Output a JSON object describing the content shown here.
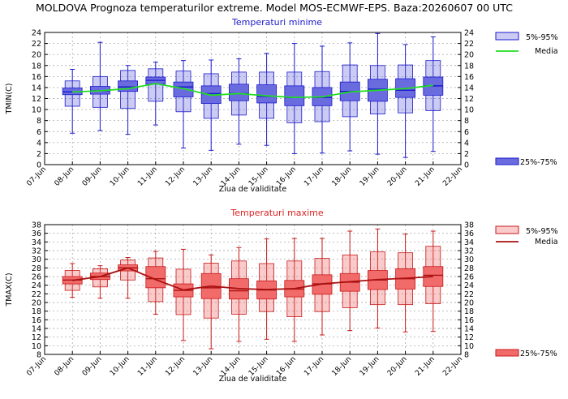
{
  "header": {
    "title": "MOLDOVA  Prognoza temperaturilor extreme.  Model MOS-ECMWF-EPS. Baza:20260607 00 UTC"
  },
  "chart_data": [
    {
      "type": "boxplot",
      "title": "Temperaturi minime",
      "title_color": "#1a1acc",
      "xlabel": "Ziua de validitate",
      "ylabel": "TMIN(C)",
      "ylim": [
        0,
        24
      ],
      "yticks": [
        0,
        2,
        4,
        6,
        8,
        10,
        12,
        14,
        16,
        18,
        20,
        22,
        24
      ],
      "grid": true,
      "categories": [
        "07-Jun",
        "08-Jun",
        "09-Jun",
        "10-Jun",
        "11-Jun",
        "12-Jun",
        "13-Jun",
        "14-Jun",
        "15-Jun",
        "16-Jun",
        "17-Jun",
        "18-Jun",
        "19-Jun",
        "20-Jun",
        "21-Jun",
        "22-Jun"
      ],
      "box_color": "#6b6be0",
      "box_stroke": "#1a1acc",
      "median_color": "#1a1acc",
      "mean_color": "#22dd22",
      "legend": {
        "placement": "right",
        "outer_label": "5%-95%",
        "mean_label": "Media",
        "box_label": "25%-75%"
      },
      "boxes": [
        {
          "x": "08-Jun",
          "p5": 5.7,
          "p25": 12.7,
          "median": 13.2,
          "p75": 13.9,
          "p95": 17.3,
          "p5_box": 10.6,
          "p95_box": 15.2
        },
        {
          "x": "09-Jun",
          "p5": 6.2,
          "p25": 12.8,
          "median": 13.4,
          "p75": 14.2,
          "p95": 22.2,
          "p5_box": 10.4,
          "p95_box": 16.0
        },
        {
          "x": "10-Jun",
          "p5": 5.5,
          "p25": 13.3,
          "median": 14.1,
          "p75": 15.2,
          "p95": 18.0,
          "p5_box": 10.2,
          "p95_box": 17.1
        },
        {
          "x": "11-Jun",
          "p5": 7.2,
          "p25": 14.6,
          "median": 15.3,
          "p75": 15.9,
          "p95": 18.6,
          "p5_box": 11.5,
          "p95_box": 17.4
        },
        {
          "x": "12-Jun",
          "p5": 3.0,
          "p25": 12.3,
          "median": 14.1,
          "p75": 15.0,
          "p95": 18.9,
          "p5_box": 9.6,
          "p95_box": 17.0
        },
        {
          "x": "13-Jun",
          "p5": 2.6,
          "p25": 11.1,
          "median": 12.9,
          "p75": 14.3,
          "p95": 19.0,
          "p5_box": 8.4,
          "p95_box": 16.5
        },
        {
          "x": "14-Jun",
          "p5": 3.7,
          "p25": 11.6,
          "median": 12.9,
          "p75": 14.6,
          "p95": 19.2,
          "p5_box": 9.0,
          "p95_box": 16.8
        },
        {
          "x": "15-Jun",
          "p5": 3.5,
          "p25": 11.2,
          "median": 12.4,
          "p75": 14.5,
          "p95": 20.2,
          "p5_box": 8.4,
          "p95_box": 16.8
        },
        {
          "x": "16-Jun",
          "p5": 2.0,
          "p25": 10.7,
          "median": 12.2,
          "p75": 14.3,
          "p95": 22.0,
          "p5_box": 7.6,
          "p95_box": 16.8
        },
        {
          "x": "17-Jun",
          "p5": 2.1,
          "p25": 10.7,
          "median": 12.2,
          "p75": 14.0,
          "p95": 21.5,
          "p5_box": 7.8,
          "p95_box": 16.9
        },
        {
          "x": "18-Jun",
          "p5": 2.5,
          "p25": 11.6,
          "median": 13.3,
          "p75": 15.0,
          "p95": 22.1,
          "p5_box": 8.7,
          "p95_box": 18.1
        },
        {
          "x": "19-Jun",
          "p5": 1.9,
          "p25": 11.5,
          "median": 13.7,
          "p75": 15.5,
          "p95": 23.8,
          "p5_box": 9.2,
          "p95_box": 18.0
        },
        {
          "x": "20-Jun",
          "p5": 1.3,
          "p25": 12.2,
          "median": 13.5,
          "p75": 15.6,
          "p95": 21.8,
          "p5_box": 9.4,
          "p95_box": 18.1
        },
        {
          "x": "21-Jun",
          "p5": 2.4,
          "p25": 12.6,
          "median": 14.3,
          "p75": 15.9,
          "p95": 23.2,
          "p5_box": 9.8,
          "p95_box": 18.9
        }
      ],
      "mean": {
        "x": [
          "08-Jun",
          "09-Jun",
          "10-Jun",
          "11-Jun",
          "12-Jun",
          "13-Jun",
          "14-Jun",
          "15-Jun",
          "16-Jun",
          "17-Jun",
          "18-Jun",
          "19-Jun",
          "20-Jun",
          "21-Jun"
        ],
        "values": [
          13.2,
          13.4,
          13.8,
          14.7,
          13.8,
          12.6,
          12.9,
          12.5,
          12.2,
          12.3,
          13.2,
          13.5,
          13.8,
          14.4
        ]
      }
    },
    {
      "type": "boxplot",
      "title": "Temperaturi maxime",
      "title_color": "#dd2222",
      "xlabel": "Ziua de validitate",
      "ylabel": "TMAX(C)",
      "ylim": [
        8,
        38
      ],
      "yticks": [
        8,
        10,
        12,
        14,
        16,
        18,
        20,
        22,
        24,
        26,
        28,
        30,
        32,
        34,
        36,
        38
      ],
      "grid": true,
      "categories": [
        "07-Jun",
        "08-Jun",
        "09-Jun",
        "10-Jun",
        "11-Jun",
        "12-Jun",
        "13-Jun",
        "14-Jun",
        "15-Jun",
        "16-Jun",
        "17-Jun",
        "18-Jun",
        "19-Jun",
        "20-Jun",
        "21-Jun",
        "22-Jun"
      ],
      "box_color": "#f26b6b",
      "box_stroke": "#c81818",
      "median_color": "#aa1111",
      "mean_color": "#aa1111",
      "legend": {
        "placement": "right",
        "outer_label": "5%-95%",
        "mean_label": "Media",
        "box_label": "25%-75%"
      },
      "boxes": [
        {
          "x": "08-Jun",
          "p5": 21.2,
          "p25": 24.3,
          "median": 25.2,
          "p75": 26.0,
          "p95": 29.0,
          "p5_box": 22.8,
          "p95_box": 27.4
        },
        {
          "x": "09-Jun",
          "p5": 21.0,
          "p25": 25.3,
          "median": 26.0,
          "p75": 26.8,
          "p95": 28.5,
          "p5_box": 23.6,
          "p95_box": 27.8
        },
        {
          "x": "10-Jun",
          "p5": 21.0,
          "p25": 27.3,
          "median": 28.0,
          "p75": 28.7,
          "p95": 30.4,
          "p5_box": 25.2,
          "p95_box": 29.8
        },
        {
          "x": "11-Jun",
          "p5": 17.3,
          "p25": 23.4,
          "median": 25.5,
          "p75": 28.3,
          "p95": 31.8,
          "p5_box": 20.2,
          "p95_box": 30.3
        },
        {
          "x": "12-Jun",
          "p5": 11.2,
          "p25": 21.3,
          "median": 22.8,
          "p75": 24.3,
          "p95": 32.3,
          "p5_box": 17.2,
          "p95_box": 27.7
        },
        {
          "x": "13-Jun",
          "p5": 9.3,
          "p25": 20.9,
          "median": 23.4,
          "p75": 26.7,
          "p95": 31.0,
          "p5_box": 16.4,
          "p95_box": 29.1
        },
        {
          "x": "14-Jun",
          "p5": 11.0,
          "p25": 20.8,
          "median": 22.7,
          "p75": 25.5,
          "p95": 32.7,
          "p5_box": 17.3,
          "p95_box": 29.6
        },
        {
          "x": "15-Jun",
          "p5": 11.5,
          "p25": 20.8,
          "median": 22.9,
          "p75": 25.0,
          "p95": 34.7,
          "p5_box": 17.9,
          "p95_box": 29.0
        },
        {
          "x": "16-Jun",
          "p5": 11.0,
          "p25": 21.3,
          "median": 23.1,
          "p75": 25.1,
          "p95": 34.8,
          "p5_box": 16.7,
          "p95_box": 29.6
        },
        {
          "x": "17-Jun",
          "p5": 12.5,
          "p25": 21.9,
          "median": 24.3,
          "p75": 26.4,
          "p95": 34.8,
          "p5_box": 17.9,
          "p95_box": 30.2
        },
        {
          "x": "18-Jun",
          "p5": 13.5,
          "p25": 22.6,
          "median": 24.7,
          "p75": 26.7,
          "p95": 36.5,
          "p5_box": 18.8,
          "p95_box": 31.0
        },
        {
          "x": "19-Jun",
          "p5": 14.1,
          "p25": 23.0,
          "median": 25.2,
          "p75": 27.4,
          "p95": 37.0,
          "p5_box": 19.5,
          "p95_box": 31.7
        },
        {
          "x": "20-Jun",
          "p5": 13.2,
          "p25": 23.1,
          "median": 25.5,
          "p75": 27.8,
          "p95": 35.8,
          "p5_box": 19.5,
          "p95_box": 31.5
        },
        {
          "x": "21-Jun",
          "p5": 13.3,
          "p25": 23.7,
          "median": 26.3,
          "p75": 28.3,
          "p95": 36.5,
          "p5_box": 19.7,
          "p95_box": 33.0
        }
      ],
      "mean": {
        "x": [
          "08-Jun",
          "09-Jun",
          "10-Jun",
          "11-Jun",
          "12-Jun",
          "13-Jun",
          "14-Jun",
          "15-Jun",
          "16-Jun",
          "17-Jun",
          "18-Jun",
          "19-Jun",
          "20-Jun",
          "21-Jun"
        ],
        "values": [
          25.1,
          26.0,
          28.0,
          25.3,
          22.9,
          23.8,
          23.2,
          23.0,
          23.2,
          24.3,
          24.8,
          25.3,
          25.6,
          26.0
        ]
      }
    }
  ]
}
